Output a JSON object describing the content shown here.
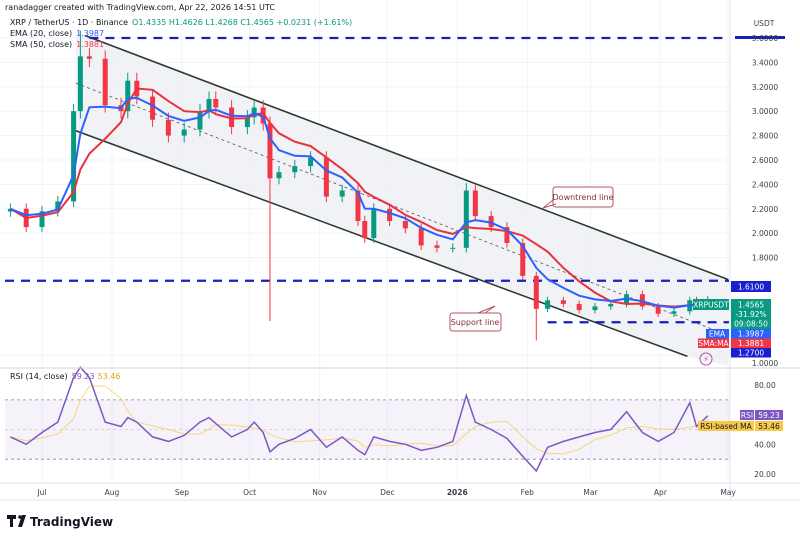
{
  "watermark": "ranadagger created with TradingView.com, Apr 22, 2026 14:51 UTC",
  "legend": {
    "symbol": "XRP / TetherUS · 1D · Binance",
    "ohlc": "O1.4335 H1.4626 L1.4268 C1.4565 +0.0231 (+1.61%)",
    "ema_label": "EMA (20, close)",
    "ema_value": "1.3987",
    "sma_label": "SMA (50, close)",
    "sma_value": "1.3881",
    "rsi_label": "RSI (14, close)",
    "rsi_value": "59.23",
    "rsi_ma_value": "53.46"
  },
  "colors": {
    "up": "#089981",
    "down": "#f23645",
    "ema": "#2962ff",
    "sma": "#e8313f",
    "level": "#1a1fb8",
    "rsi": "#7e57c2",
    "rsi_ma": "#f7c948",
    "channel": "#2b3a36"
  },
  "tags": {
    "symbol": "XRPUSDT",
    "price": "1.4565",
    "change": "-31.92%",
    "countdown": "09:08:50",
    "resistance": "1.6100",
    "ema": "EMA",
    "ema_value": "1.3987",
    "sma": "SMA:MA",
    "sma_value": "1.3881",
    "support": "1.2700",
    "rsi": "RSI",
    "rsi_value": "59.23",
    "rsi_ma": "RSI-based MA",
    "rsi_ma_value": "53.46"
  },
  "annotations": {
    "downtrend": "Downtrend line",
    "support": "Support line"
  },
  "brand": "TradingView",
  "chart_data": {
    "type": "candlestick",
    "currency": "USDT",
    "price_ticks": [
      "3.6000",
      "3.4000",
      "3.2000",
      "3.0000",
      "2.8000",
      "2.6000",
      "2.4000",
      "2.2000",
      "2.0000",
      "1.8000",
      "1.0000"
    ],
    "price_tick_values": [
      3.6,
      3.4,
      3.2,
      3.0,
      2.8,
      2.6,
      2.4,
      2.2,
      2.0,
      1.8,
      1.0
    ],
    "x_ticks": [
      "Jul",
      "Aug",
      "Sep",
      "Oct",
      "Nov",
      "Dec",
      "2026",
      "Feb",
      "Mar",
      "Apr",
      "May"
    ],
    "x_tick_dates": [
      "2025-07-01",
      "2025-08-01",
      "2025-09-01",
      "2025-10-01",
      "2025-11-01",
      "2025-12-01",
      "2026-01-01",
      "2026-02-01",
      "2026-03-01",
      "2026-04-01",
      "2026-05-01"
    ],
    "dates": [
      "2025-06-17",
      "2025-06-24",
      "2025-07-01",
      "2025-07-08",
      "2025-07-15",
      "2025-07-18",
      "2025-07-22",
      "2025-07-29",
      "2025-08-05",
      "2025-08-08",
      "2025-08-12",
      "2025-08-19",
      "2025-08-26",
      "2025-09-02",
      "2025-09-09",
      "2025-09-13",
      "2025-09-16",
      "2025-09-23",
      "2025-09-30",
      "2025-10-03",
      "2025-10-07",
      "2025-10-10",
      "2025-10-14",
      "2025-10-21",
      "2025-10-28",
      "2025-11-04",
      "2025-11-11",
      "2025-11-18",
      "2025-11-21",
      "2025-11-25",
      "2025-12-02",
      "2025-12-09",
      "2025-12-16",
      "2025-12-23",
      "2025-12-30",
      "2026-01-05",
      "2026-01-09",
      "2026-01-16",
      "2026-01-23",
      "2026-01-30",
      "2026-02-05",
      "2026-02-10",
      "2026-02-17",
      "2026-02-24",
      "2026-03-03",
      "2026-03-10",
      "2026-03-17",
      "2026-03-24",
      "2026-03-31",
      "2026-04-07",
      "2026-04-14",
      "2026-04-17",
      "2026-04-22"
    ],
    "close": [
      2.2,
      2.05,
      2.18,
      2.26,
      3.0,
      3.45,
      3.43,
      3.05,
      3.0,
      3.25,
      3.12,
      2.93,
      2.8,
      2.85,
      3.0,
      3.1,
      3.03,
      2.87,
      2.95,
      3.03,
      2.9,
      2.45,
      2.5,
      2.55,
      2.62,
      2.3,
      2.35,
      2.1,
      1.96,
      2.2,
      2.1,
      2.04,
      1.9,
      1.88,
      1.88,
      2.35,
      2.14,
      2.05,
      1.92,
      1.65,
      1.38,
      1.45,
      1.42,
      1.37,
      1.4,
      1.42,
      1.5,
      1.4,
      1.34,
      1.36,
      1.45,
      1.42,
      1.4565
    ],
    "wicks": [
      {
        "date": "2025-07-18",
        "high": 3.66
      },
      {
        "date": "2025-10-10",
        "low": 1.28
      },
      {
        "date": "2026-01-05",
        "high": 2.41
      },
      {
        "date": "2026-02-05",
        "low": 1.12
      }
    ],
    "rsi": [
      45,
      40,
      48,
      55,
      85,
      92,
      85,
      55,
      52,
      58,
      55,
      45,
      42,
      46,
      55,
      58,
      54,
      45,
      50,
      55,
      48,
      35,
      40,
      44,
      50,
      38,
      45,
      36,
      33,
      45,
      42,
      40,
      36,
      38,
      42,
      73,
      55,
      50,
      44,
      32,
      22,
      38,
      42,
      45,
      48,
      50,
      62,
      48,
      42,
      48,
      68,
      52,
      59.23
    ],
    "rsi_ticks": [
      "80.00",
      "40.00",
      "20.00"
    ],
    "rsi_tick_values": [
      80,
      40,
      20
    ],
    "rsi_bands": [
      70,
      30
    ],
    "horizontal_levels": [
      3.6,
      1.61,
      1.27
    ],
    "trendlines": [
      {
        "name": "upper",
        "from": [
          "2025-07-20",
          3.62
        ],
        "to": [
          "2026-05-01",
          1.62
        ]
      },
      {
        "name": "lower",
        "from": [
          "2025-07-16",
          2.84
        ],
        "to": [
          "2026-04-13",
          0.99
        ]
      },
      {
        "name": "mid",
        "from": [
          "2025-07-16",
          3.23
        ],
        "to": [
          "2026-04-30",
          1.17
        ]
      }
    ]
  }
}
